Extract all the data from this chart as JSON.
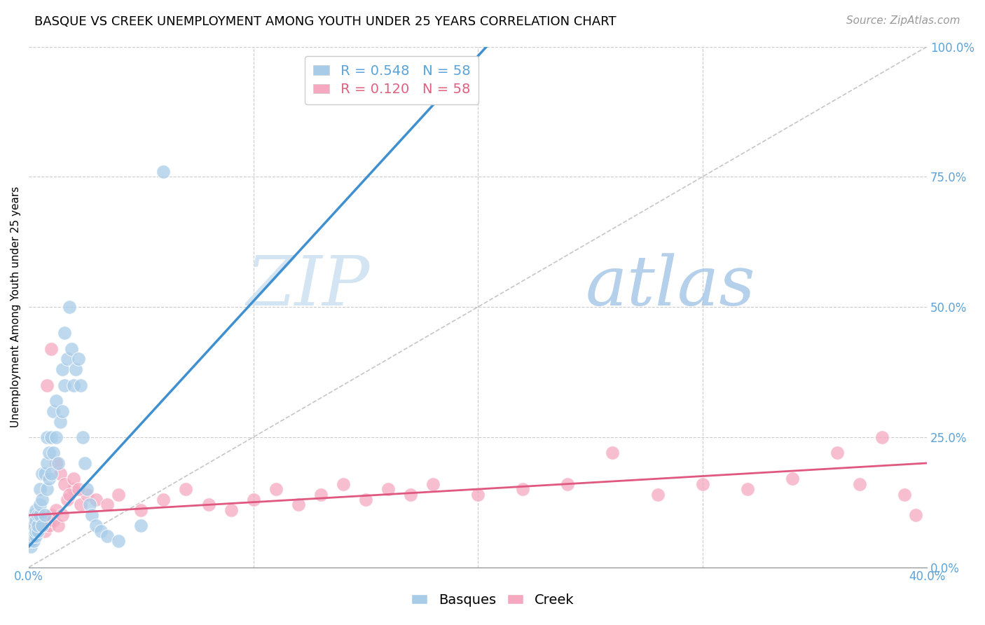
{
  "title": "BASQUE VS CREEK UNEMPLOYMENT AMONG YOUTH UNDER 25 YEARS CORRELATION CHART",
  "source": "Source: ZipAtlas.com",
  "ylabel": "Unemployment Among Youth under 25 years",
  "xlim": [
    0.0,
    0.4
  ],
  "ylim": [
    0.0,
    1.0
  ],
  "xtick_vals": [
    0.0,
    0.1,
    0.2,
    0.3,
    0.4
  ],
  "xtick_labels": [
    "0.0%",
    "",
    "",
    "",
    "40.0%"
  ],
  "ytick_vals_right": [
    0.0,
    0.25,
    0.5,
    0.75,
    1.0
  ],
  "ytick_labels_right": [
    "0.0%",
    "25.0%",
    "50.0%",
    "75.0%",
    "100.0%"
  ],
  "legend_blue_label_r": "R = 0.548",
  "legend_blue_label_n": "N = 58",
  "legend_pink_label_r": "R = 0.120",
  "legend_pink_label_n": "N = 58",
  "basque_color": "#a8cce8",
  "creek_color": "#f5a8bf",
  "blue_line_color": "#4090d0",
  "pink_line_color": "#e05880",
  "diagonal_color": "#b8b8b8",
  "watermark_zip": "ZIP",
  "watermark_atlas": "atlas",
  "blue_line_x0": 0.0,
  "blue_line_y0": 0.04,
  "blue_line_x1": 0.155,
  "blue_line_y1": 0.77,
  "pink_line_x0": 0.0,
  "pink_line_y0": 0.1,
  "pink_line_x1": 0.4,
  "pink_line_y1": 0.2,
  "title_fontsize": 13,
  "axis_label_fontsize": 11,
  "tick_fontsize": 12,
  "legend_fontsize": 14,
  "source_fontsize": 11,
  "basques_x": [
    0.001,
    0.001,
    0.001,
    0.001,
    0.002,
    0.002,
    0.002,
    0.002,
    0.003,
    0.003,
    0.003,
    0.003,
    0.004,
    0.004,
    0.004,
    0.005,
    0.005,
    0.005,
    0.006,
    0.006,
    0.006,
    0.007,
    0.007,
    0.008,
    0.008,
    0.008,
    0.009,
    0.009,
    0.01,
    0.01,
    0.011,
    0.011,
    0.012,
    0.012,
    0.013,
    0.014,
    0.015,
    0.015,
    0.016,
    0.016,
    0.017,
    0.018,
    0.019,
    0.02,
    0.021,
    0.022,
    0.023,
    0.024,
    0.025,
    0.026,
    0.027,
    0.028,
    0.03,
    0.032,
    0.035,
    0.04,
    0.05,
    0.06
  ],
  "basques_y": [
    0.04,
    0.05,
    0.06,
    0.07,
    0.05,
    0.06,
    0.08,
    0.1,
    0.06,
    0.07,
    0.09,
    0.11,
    0.07,
    0.08,
    0.1,
    0.1,
    0.12,
    0.15,
    0.08,
    0.13,
    0.18,
    0.1,
    0.18,
    0.15,
    0.2,
    0.25,
    0.17,
    0.22,
    0.18,
    0.25,
    0.22,
    0.3,
    0.25,
    0.32,
    0.2,
    0.28,
    0.3,
    0.38,
    0.35,
    0.45,
    0.4,
    0.5,
    0.42,
    0.35,
    0.38,
    0.4,
    0.35,
    0.25,
    0.2,
    0.15,
    0.12,
    0.1,
    0.08,
    0.07,
    0.06,
    0.05,
    0.08,
    0.76
  ],
  "creek_x": [
    0.001,
    0.001,
    0.002,
    0.002,
    0.003,
    0.004,
    0.005,
    0.006,
    0.007,
    0.008,
    0.009,
    0.01,
    0.011,
    0.012,
    0.013,
    0.015,
    0.017,
    0.02,
    0.023,
    0.026,
    0.03,
    0.035,
    0.04,
    0.05,
    0.06,
    0.07,
    0.08,
    0.09,
    0.1,
    0.11,
    0.12,
    0.13,
    0.14,
    0.15,
    0.16,
    0.17,
    0.18,
    0.2,
    0.22,
    0.24,
    0.26,
    0.28,
    0.3,
    0.32,
    0.34,
    0.36,
    0.37,
    0.38,
    0.39,
    0.395,
    0.008,
    0.01,
    0.012,
    0.014,
    0.016,
    0.018,
    0.02,
    0.022
  ],
  "creek_y": [
    0.05,
    0.07,
    0.06,
    0.08,
    0.07,
    0.09,
    0.08,
    0.1,
    0.07,
    0.09,
    0.08,
    0.1,
    0.09,
    0.11,
    0.08,
    0.1,
    0.13,
    0.15,
    0.12,
    0.14,
    0.13,
    0.12,
    0.14,
    0.11,
    0.13,
    0.15,
    0.12,
    0.11,
    0.13,
    0.15,
    0.12,
    0.14,
    0.16,
    0.13,
    0.15,
    0.14,
    0.16,
    0.14,
    0.15,
    0.16,
    0.22,
    0.14,
    0.16,
    0.15,
    0.17,
    0.22,
    0.16,
    0.25,
    0.14,
    0.1,
    0.35,
    0.42,
    0.2,
    0.18,
    0.16,
    0.14,
    0.17,
    0.15
  ]
}
